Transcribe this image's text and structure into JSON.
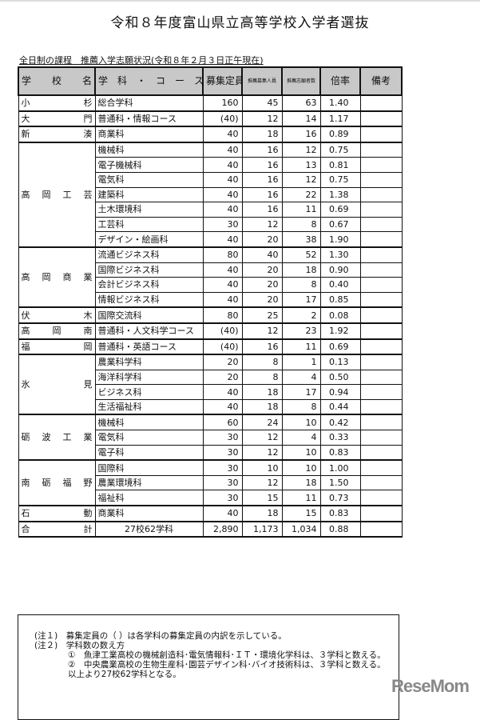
{
  "title": "令和８年度富山県立高等学校入学者選抜",
  "subtitle": "全日制の課程　推薦入学志願状況(令和８年２月３日正午現在)",
  "headers": {
    "school": "学　　校　　名",
    "course": "学　科　・　コ　ー　ス",
    "capacity": "募集定員",
    "rec_capacity": "推薦募集人員",
    "applicants": "推薦志願者数",
    "ratio": "倍率",
    "remarks": "備考"
  },
  "schools": [
    {
      "name": "小杉",
      "courses": [
        {
          "course": "総合学科",
          "capacity": "160",
          "rec": "45",
          "app": "63",
          "ratio": "1.40"
        }
      ]
    },
    {
      "name": "大門",
      "courses": [
        {
          "course": "普通科・情報コース",
          "capacity": "(40)",
          "rec": "12",
          "app": "14",
          "ratio": "1.17"
        }
      ]
    },
    {
      "name": "新湊",
      "courses": [
        {
          "course": "商業科",
          "capacity": "40",
          "rec": "18",
          "app": "16",
          "ratio": "0.89"
        }
      ]
    },
    {
      "name": "高岡工芸",
      "courses": [
        {
          "course": "機械科",
          "capacity": "40",
          "rec": "16",
          "app": "12",
          "ratio": "0.75"
        },
        {
          "course": "電子機械科",
          "capacity": "40",
          "rec": "16",
          "app": "13",
          "ratio": "0.81"
        },
        {
          "course": "電気科",
          "capacity": "40",
          "rec": "16",
          "app": "12",
          "ratio": "0.75"
        },
        {
          "course": "建築科",
          "capacity": "40",
          "rec": "16",
          "app": "22",
          "ratio": "1.38"
        },
        {
          "course": "土木環境科",
          "capacity": "40",
          "rec": "16",
          "app": "11",
          "ratio": "0.69"
        },
        {
          "course": "工芸科",
          "capacity": "30",
          "rec": "12",
          "app": "8",
          "ratio": "0.67"
        },
        {
          "course": "デザイン・絵画科",
          "capacity": "40",
          "rec": "20",
          "app": "38",
          "ratio": "1.90"
        }
      ]
    },
    {
      "name": "高岡商業",
      "courses": [
        {
          "course": "流通ビジネス科",
          "capacity": "80",
          "rec": "40",
          "app": "52",
          "ratio": "1.30"
        },
        {
          "course": "国際ビジネス科",
          "capacity": "40",
          "rec": "20",
          "app": "18",
          "ratio": "0.90"
        },
        {
          "course": "会計ビジネス科",
          "capacity": "40",
          "rec": "20",
          "app": "8",
          "ratio": "0.40"
        },
        {
          "course": "情報ビジネス科",
          "capacity": "40",
          "rec": "20",
          "app": "17",
          "ratio": "0.85"
        }
      ]
    },
    {
      "name": "伏木",
      "courses": [
        {
          "course": "国際交流科",
          "capacity": "80",
          "rec": "25",
          "app": "2",
          "ratio": "0.08"
        }
      ]
    },
    {
      "name": "高岡南",
      "courses": [
        {
          "course": "普通科・人文科学コース",
          "capacity": "(40)",
          "rec": "12",
          "app": "23",
          "ratio": "1.92"
        }
      ]
    },
    {
      "name": "福岡",
      "courses": [
        {
          "course": "普通科・英語コース",
          "capacity": "(40)",
          "rec": "16",
          "app": "11",
          "ratio": "0.69"
        }
      ]
    },
    {
      "name": "氷見",
      "courses": [
        {
          "course": "農業科学科",
          "capacity": "20",
          "rec": "8",
          "app": "1",
          "ratio": "0.13"
        },
        {
          "course": "海洋科学科",
          "capacity": "20",
          "rec": "8",
          "app": "4",
          "ratio": "0.50"
        },
        {
          "course": "ビジネス科",
          "capacity": "40",
          "rec": "18",
          "app": "17",
          "ratio": "0.94"
        },
        {
          "course": "生活福祉科",
          "capacity": "40",
          "rec": "18",
          "app": "8",
          "ratio": "0.44"
        }
      ]
    },
    {
      "name": "砺波工業",
      "courses": [
        {
          "course": "機械科",
          "capacity": "60",
          "rec": "24",
          "app": "10",
          "ratio": "0.42"
        },
        {
          "course": "電気科",
          "capacity": "30",
          "rec": "12",
          "app": "4",
          "ratio": "0.33"
        },
        {
          "course": "電子科",
          "capacity": "30",
          "rec": "12",
          "app": "10",
          "ratio": "0.83"
        }
      ]
    },
    {
      "name": "南砺福野",
      "courses": [
        {
          "course": "国際科",
          "capacity": "30",
          "rec": "10",
          "app": "10",
          "ratio": "1.00"
        },
        {
          "course": "農業環境科",
          "capacity": "30",
          "rec": "12",
          "app": "18",
          "ratio": "1.50"
        },
        {
          "course": "福祉科",
          "capacity": "30",
          "rec": "15",
          "app": "11",
          "ratio": "0.73"
        }
      ]
    },
    {
      "name": "石動",
      "courses": [
        {
          "course": "商業科",
          "capacity": "40",
          "rec": "18",
          "app": "15",
          "ratio": "0.83"
        }
      ]
    }
  ],
  "total": {
    "label": "合計",
    "courses": "27校62学科",
    "capacity": "2,890",
    "rec": "1,173",
    "app": "1,034",
    "ratio": "0.88"
  },
  "notes": [
    "(注１)　募集定員の（ ）は各学科の募集定員の内訳を示している。",
    "(注２)　学科数の数え方",
    "　　　　①　魚津工業高校の機械創造科･電気情報科･ＩＴ・環境化学科は、３学科と数える。",
    "　　　　②　中央農業高校の生物生産科･園芸デザイン科･バイオ技術科は、３学科と数える。",
    "　　　　以上より27校62学科となる。"
  ],
  "watermark": "ReseMom"
}
